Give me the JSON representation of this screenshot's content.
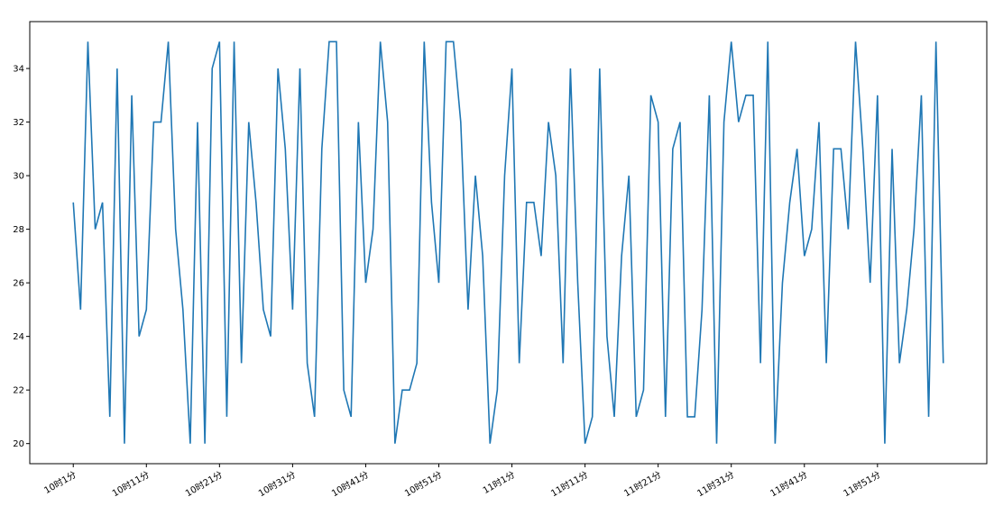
{
  "chart_data": {
    "type": "line",
    "categories": [
      "10时1分",
      null,
      null,
      null,
      null,
      null,
      null,
      null,
      null,
      null,
      "10时11分",
      null,
      null,
      null,
      null,
      null,
      null,
      null,
      null,
      null,
      "10时21分",
      null,
      null,
      null,
      null,
      null,
      null,
      null,
      null,
      null,
      "10时31分",
      null,
      null,
      null,
      null,
      null,
      null,
      null,
      null,
      null,
      "10时41分",
      null,
      null,
      null,
      null,
      null,
      null,
      null,
      null,
      null,
      "10时51分",
      null,
      null,
      null,
      null,
      null,
      null,
      null,
      null,
      null,
      "11时1分",
      null,
      null,
      null,
      null,
      null,
      null,
      null,
      null,
      null,
      "11时11分",
      null,
      null,
      null,
      null,
      null,
      null,
      null,
      null,
      null,
      "11时21分",
      null,
      null,
      null,
      null,
      null,
      null,
      null,
      null,
      null,
      "11时31分",
      null,
      null,
      null,
      null,
      null,
      null,
      null,
      null,
      null,
      "11时41分",
      null,
      null,
      null,
      null,
      null,
      null,
      null,
      null,
      null,
      "11时51分",
      null,
      null,
      null,
      null,
      null,
      null,
      null,
      null,
      null
    ],
    "values": [
      29,
      25,
      35,
      28,
      29,
      21,
      34,
      20,
      33,
      24,
      25,
      32,
      32,
      35,
      28,
      25,
      20,
      32,
      20,
      34,
      35,
      21,
      35,
      23,
      32,
      29,
      25,
      24,
      34,
      31,
      25,
      34,
      23,
      21,
      31,
      35,
      35,
      22,
      21,
      32,
      26,
      28,
      35,
      32,
      20,
      22,
      22,
      23,
      35,
      29,
      26,
      35,
      35,
      32,
      25,
      30,
      27,
      20,
      22,
      30,
      34,
      23,
      29,
      29,
      27,
      32,
      30,
      23,
      34,
      26,
      20,
      21,
      34,
      24,
      21,
      27,
      30,
      21,
      22,
      33,
      32,
      21,
      31,
      32,
      21,
      21,
      25,
      33,
      20,
      32,
      35,
      32,
      33,
      33,
      23,
      35,
      20,
      26,
      29,
      31,
      27,
      28,
      32,
      23,
      31,
      31,
      28,
      35,
      31,
      26,
      33,
      20,
      31,
      23,
      25,
      28,
      33,
      21,
      35,
      23
    ],
    "color": "#1f77b4",
    "ylim": [
      19.25,
      35.75
    ],
    "yticks": [
      20,
      22,
      24,
      26,
      28,
      30,
      32,
      34
    ]
  }
}
